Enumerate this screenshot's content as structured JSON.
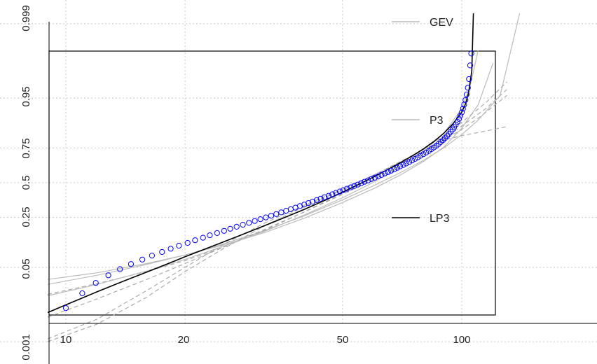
{
  "chart_data": {
    "type": "scatter",
    "title": "",
    "xlabel": "",
    "ylabel": "",
    "x_scale": "log",
    "y_scale": "normal-probability",
    "xlim": [
      9,
      130
    ],
    "ylim": [
      0.001,
      0.999
    ],
    "x_ticks": [
      "10",
      "20",
      "50",
      "100"
    ],
    "y_ticks": [
      "0.001",
      "0.05",
      "0.25",
      "0.5",
      "0.75",
      "0.95",
      "0.999"
    ],
    "grid": true,
    "legend_labels": [
      "GEV",
      "P3",
      "LP3"
    ],
    "legend_placement": "right",
    "observations": {
      "marker": "open-circle",
      "color": "#0000ff",
      "x": [
        10.0,
        11.0,
        11.9,
        12.8,
        13.7,
        14.6,
        15.6,
        16.5,
        17.5,
        18.4,
        19.3,
        20.3,
        21.2,
        22.2,
        23.1,
        24.1,
        25.1,
        26.0,
        27.0,
        28.0,
        29.0,
        30.0,
        31.0,
        32.0,
        33.0,
        34.0,
        35.0,
        36.0,
        37.0,
        38.0,
        39.0,
        40.0,
        41.0,
        42.0,
        43.0,
        44.0,
        45.0,
        46.1,
        47.1,
        48.1,
        49.2,
        50.2,
        51.3,
        52.4,
        53.5,
        54.6,
        55.7,
        56.8,
        58.0,
        59.1,
        60.3,
        61.5,
        62.7,
        63.9,
        65.1,
        66.3,
        67.5,
        68.7,
        69.9,
        71.2,
        72.4,
        73.7,
        74.9,
        76.2,
        77.4,
        78.7,
        80.0,
        81.3,
        82.6,
        83.8,
        85.0,
        86.3,
        87.4,
        88.5,
        89.6,
        90.7,
        91.8,
        92.8,
        93.8,
        94.8,
        95.7,
        96.6,
        97.5,
        98.4,
        99.2,
        100.0,
        100.7,
        101.4,
        102.2,
        102.9,
        103.6,
        104.3,
        105.0,
        105.7
      ],
      "p": [
        0.0074,
        0.0158,
        0.0257,
        0.0359,
        0.0464,
        0.057,
        0.0676,
        0.0783,
        0.089,
        0.0997,
        0.1104,
        0.1211,
        0.1318,
        0.1426,
        0.1533,
        0.164,
        0.1747,
        0.1854,
        0.1961,
        0.2068,
        0.2176,
        0.2283,
        0.239,
        0.2497,
        0.2604,
        0.2711,
        0.2818,
        0.2926,
        0.3033,
        0.314,
        0.3247,
        0.3354,
        0.3461,
        0.3568,
        0.3676,
        0.3783,
        0.389,
        0.3997,
        0.4104,
        0.4211,
        0.4318,
        0.4426,
        0.4533,
        0.464,
        0.4747,
        0.4854,
        0.4961,
        0.5068,
        0.5176,
        0.5283,
        0.539,
        0.5497,
        0.5604,
        0.5711,
        0.5818,
        0.5926,
        0.6033,
        0.614,
        0.6247,
        0.6354,
        0.6461,
        0.6568,
        0.6676,
        0.6783,
        0.689,
        0.6997,
        0.7104,
        0.7211,
        0.7318,
        0.7426,
        0.7533,
        0.764,
        0.7747,
        0.7854,
        0.7961,
        0.8068,
        0.8176,
        0.8283,
        0.839,
        0.8497,
        0.8604,
        0.8711,
        0.8818,
        0.8926,
        0.9033,
        0.914,
        0.9247,
        0.9354,
        0.9461,
        0.9568,
        0.9675,
        0.978,
        0.9887,
        0.994
      ]
    },
    "series": [
      {
        "name": "LP3",
        "style": "solid",
        "color": "#000000",
        "x": [
          9.0,
          10.0,
          12.0,
          14.0,
          16.0,
          18.0,
          20.0,
          22.0,
          25.0,
          28.0,
          32.0,
          36.0,
          40.0,
          45.0,
          50.0,
          55.0,
          60.0,
          65.0,
          70.0,
          75.0,
          80.0,
          85.0,
          90.0,
          95.0,
          100.0,
          102.0,
          104.0,
          106.0,
          107.0
        ],
        "p": [
          0.0058,
          0.0088,
          0.017,
          0.028,
          0.041,
          0.057,
          0.075,
          0.094,
          0.125,
          0.158,
          0.205,
          0.253,
          0.302,
          0.365,
          0.427,
          0.488,
          0.546,
          0.601,
          0.652,
          0.699,
          0.744,
          0.788,
          0.831,
          0.874,
          0.915,
          0.935,
          0.959,
          0.985,
          0.9995
        ]
      },
      {
        "name": "GEV",
        "style": "solid",
        "color": "#bbbbbb",
        "x": [
          9.0,
          12.0,
          16.0,
          20.0,
          25.0,
          32.0,
          40.0,
          50.0,
          60.0,
          70.0,
          80.0,
          90.0,
          100.0,
          110.0,
          125.0,
          140.0
        ],
        "p": [
          0.024,
          0.036,
          0.056,
          0.08,
          0.117,
          0.178,
          0.26,
          0.37,
          0.478,
          0.578,
          0.668,
          0.75,
          0.825,
          0.888,
          0.955,
          0.9995
        ]
      },
      {
        "name": "P3",
        "style": "solid",
        "color": "#bbbbbb",
        "x": [
          9.0,
          12.0,
          16.0,
          20.0,
          25.0,
          32.0,
          40.0,
          50.0,
          60.0,
          70.0,
          80.0,
          90.0,
          100.0,
          110.0,
          120.0
        ],
        "p": [
          0.03,
          0.04,
          0.058,
          0.08,
          0.113,
          0.168,
          0.245,
          0.35,
          0.455,
          0.56,
          0.66,
          0.755,
          0.855,
          0.935,
          0.99
        ]
      },
      {
        "name": "",
        "style": "dashed",
        "color": "#aaaaaa",
        "x": [
          9.0,
          12.0,
          16.0,
          20.0,
          25.0,
          32.0,
          40.0,
          50.0,
          60.0,
          70.0,
          80.0,
          90.0,
          100.0,
          110.0,
          130.0
        ],
        "p": [
          0.0012,
          0.004,
          0.018,
          0.05,
          0.115,
          0.22,
          0.33,
          0.45,
          0.56,
          0.655,
          0.73,
          0.795,
          0.85,
          0.895,
          0.955
        ]
      },
      {
        "name": "",
        "style": "dashed",
        "color": "#aaaaaa",
        "x": [
          9.0,
          12.0,
          16.0,
          20.0,
          25.0,
          32.0,
          40.0,
          50.0,
          60.0,
          70.0,
          80.0,
          90.0,
          100.0,
          115.0,
          130.0
        ],
        "p": [
          0.001,
          0.003,
          0.013,
          0.042,
          0.1,
          0.205,
          0.32,
          0.445,
          0.56,
          0.66,
          0.74,
          0.795,
          0.82,
          0.842,
          0.862
        ]
      },
      {
        "name": "",
        "style": "dashed",
        "color": "#aaaaaa",
        "x": [
          9.0,
          12.0,
          16.0,
          20.0,
          25.0,
          32.0,
          40.0,
          50.0,
          60.0,
          70.0,
          80.0,
          90.0,
          100.0,
          115.0,
          130.0
        ],
        "p": [
          0.0045,
          0.012,
          0.03,
          0.058,
          0.105,
          0.185,
          0.285,
          0.41,
          0.525,
          0.63,
          0.72,
          0.8,
          0.865,
          0.925,
          0.965
        ]
      },
      {
        "name": "",
        "style": "dashed",
        "color": "#aaaaaa",
        "x": [
          9.0,
          12.0,
          16.0,
          20.0,
          25.0,
          32.0,
          40.0,
          50.0,
          60.0,
          70.0,
          80.0,
          90.0,
          100.0,
          115.0,
          130.0
        ],
        "p": [
          0.015,
          0.025,
          0.042,
          0.065,
          0.105,
          0.18,
          0.285,
          0.42,
          0.545,
          0.65,
          0.74,
          0.82,
          0.88,
          0.94,
          0.975
        ]
      },
      {
        "name": "",
        "style": "solid",
        "color": "#bbbbbb",
        "x": [
          9.0,
          12.0,
          16.0,
          20.0,
          25.0,
          32.0,
          40.0,
          50.0,
          60.0,
          70.0,
          80.0,
          90.0,
          100.0,
          105.0,
          110.0
        ],
        "p": [
          0.014,
          0.024,
          0.043,
          0.068,
          0.108,
          0.175,
          0.265,
          0.385,
          0.505,
          0.62,
          0.725,
          0.83,
          0.925,
          0.97,
          0.995
        ]
      }
    ]
  }
}
